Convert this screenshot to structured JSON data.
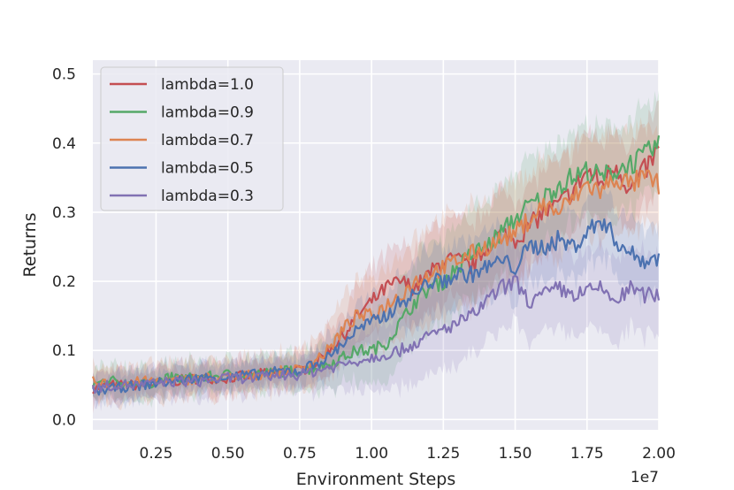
{
  "chart_data": {
    "type": "line",
    "title": "",
    "xlabel": "Environment Steps",
    "ylabel": "Returns",
    "x_offset_label": "1e7",
    "xlim": [
      0.03,
      2.0
    ],
    "ylim": [
      -0.015,
      0.52
    ],
    "xticks": [
      0.25,
      0.5,
      0.75,
      1.0,
      1.25,
      1.5,
      1.75,
      2.0
    ],
    "xtick_labels": [
      "0.25",
      "0.50",
      "0.75",
      "1.00",
      "1.25",
      "1.50",
      "1.75",
      "2.00"
    ],
    "yticks": [
      0.0,
      0.1,
      0.2,
      0.3,
      0.4,
      0.5
    ],
    "ytick_labels": [
      "0.0",
      "0.1",
      "0.2",
      "0.3",
      "0.4",
      "0.5"
    ],
    "grid": true,
    "legend_position": "top-left",
    "x": [
      0.03,
      0.1,
      0.2,
      0.3,
      0.4,
      0.5,
      0.6,
      0.7,
      0.75,
      0.8,
      0.85,
      0.9,
      0.95,
      1.0,
      1.05,
      1.1,
      1.15,
      1.2,
      1.25,
      1.3,
      1.35,
      1.4,
      1.45,
      1.5,
      1.55,
      1.6,
      1.65,
      1.7,
      1.75,
      1.8,
      1.85,
      1.9,
      1.95,
      2.0
    ],
    "series": [
      {
        "name": "lambda=1.0",
        "color": "#c44e52",
        "values": [
          0.045,
          0.05,
          0.05,
          0.055,
          0.06,
          0.06,
          0.065,
          0.07,
          0.07,
          0.08,
          0.1,
          0.12,
          0.15,
          0.17,
          0.19,
          0.2,
          0.19,
          0.21,
          0.23,
          0.23,
          0.22,
          0.25,
          0.27,
          0.26,
          0.28,
          0.3,
          0.31,
          0.33,
          0.36,
          0.34,
          0.37,
          0.33,
          0.36,
          0.39
        ],
        "band": 0.06
      },
      {
        "name": "lambda=0.9",
        "color": "#55a868",
        "values": [
          0.05,
          0.055,
          0.05,
          0.06,
          0.06,
          0.065,
          0.065,
          0.07,
          0.07,
          0.075,
          0.08,
          0.09,
          0.1,
          0.1,
          0.11,
          0.14,
          0.17,
          0.19,
          0.2,
          0.22,
          0.24,
          0.25,
          0.27,
          0.29,
          0.31,
          0.32,
          0.34,
          0.35,
          0.36,
          0.35,
          0.36,
          0.37,
          0.38,
          0.4
        ],
        "band": 0.065
      },
      {
        "name": "lambda=0.7",
        "color": "#dd8452",
        "values": [
          0.055,
          0.05,
          0.055,
          0.055,
          0.06,
          0.06,
          0.065,
          0.07,
          0.072,
          0.085,
          0.1,
          0.13,
          0.15,
          0.15,
          0.165,
          0.18,
          0.2,
          0.21,
          0.22,
          0.23,
          0.24,
          0.25,
          0.26,
          0.27,
          0.29,
          0.31,
          0.3,
          0.32,
          0.34,
          0.33,
          0.35,
          0.34,
          0.35,
          0.34
        ],
        "band": 0.07
      },
      {
        "name": "lambda=0.5",
        "color": "#4c72b0",
        "values": [
          0.04,
          0.045,
          0.05,
          0.055,
          0.06,
          0.062,
          0.065,
          0.07,
          0.07,
          0.08,
          0.09,
          0.11,
          0.13,
          0.14,
          0.15,
          0.17,
          0.18,
          0.2,
          0.2,
          0.21,
          0.21,
          0.22,
          0.23,
          0.22,
          0.25,
          0.25,
          0.26,
          0.25,
          0.27,
          0.29,
          0.26,
          0.24,
          0.23,
          0.235
        ],
        "band": 0.05
      },
      {
        "name": "lambda=0.3",
        "color": "#8172b3",
        "values": [
          0.045,
          0.05,
          0.05,
          0.055,
          0.055,
          0.06,
          0.06,
          0.065,
          0.065,
          0.07,
          0.075,
          0.08,
          0.085,
          0.09,
          0.095,
          0.1,
          0.11,
          0.12,
          0.13,
          0.14,
          0.15,
          0.17,
          0.19,
          0.2,
          0.17,
          0.18,
          0.19,
          0.18,
          0.185,
          0.19,
          0.17,
          0.19,
          0.18,
          0.18
        ],
        "band": 0.06
      }
    ]
  }
}
